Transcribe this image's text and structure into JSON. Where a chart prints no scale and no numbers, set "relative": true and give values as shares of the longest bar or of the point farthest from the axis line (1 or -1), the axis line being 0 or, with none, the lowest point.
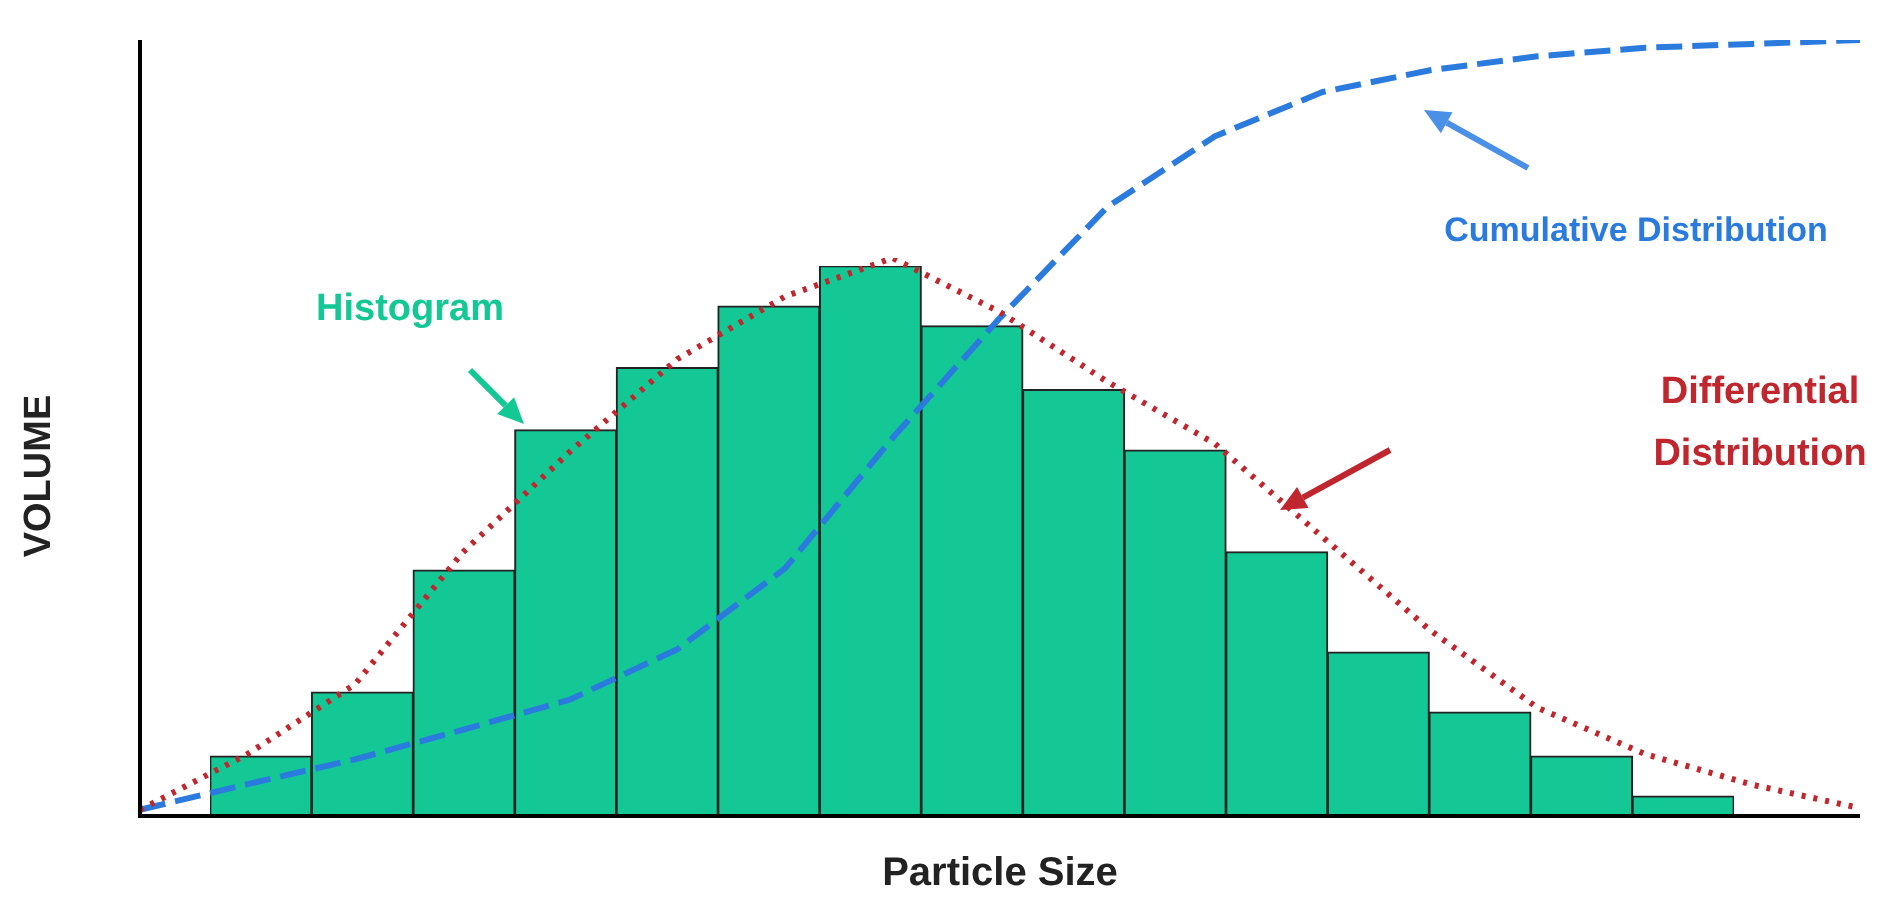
{
  "chart_data": [
    {
      "type": "bar",
      "relative": true,
      "legend": false,
      "xlabel": "Particle Size",
      "ylabel": "VOLUME",
      "categories": [
        null,
        null,
        null,
        null,
        null,
        null,
        null,
        null,
        null,
        null,
        null,
        null,
        null,
        null,
        null
      ],
      "series": [
        {
          "name": "Histogram",
          "color": "#14c896",
          "values": [
            0.109,
            0.225,
            0.447,
            0.702,
            0.815,
            0.927,
            1,
            0.891,
            0.775,
            0.665,
            0.48,
            0.298,
            0.189,
            0.109,
            0.036
          ]
        }
      ]
    },
    {
      "type": "line",
      "relative": true,
      "legend": false,
      "marker": "none",
      "line_style": "dashed",
      "categories": [
        null,
        null,
        null,
        null,
        null,
        null,
        null,
        null,
        null,
        null,
        null,
        null,
        null,
        null,
        null,
        null,
        null
      ],
      "series": [
        {
          "name": "Cumulative Distribution",
          "color": "#2b7bde",
          "values": [
            0.008,
            0.041,
            0.073,
            0.111,
            0.15,
            0.215,
            0.319,
            0.487,
            0.642,
            0.785,
            0.876,
            0.933,
            0.961,
            0.979,
            0.99,
            0.995,
            1
          ]
        }
      ]
    },
    {
      "type": "line",
      "relative": true,
      "legend": false,
      "marker": "none",
      "line_style": "dotted",
      "categories": [
        null,
        null,
        null,
        null,
        null,
        null,
        null,
        null,
        null,
        null,
        null,
        null,
        null,
        null,
        null,
        null,
        null
      ],
      "series": [
        {
          "name": "Differential Distribution",
          "color": "#c0262d",
          "values": [
            0.011,
            0.111,
            0.236,
            0.472,
            0.653,
            0.819,
            0.931,
            1,
            0.903,
            0.778,
            0.667,
            0.5,
            0.333,
            0.194,
            0.111,
            0.056,
            0.014
          ]
        }
      ]
    }
  ]
}
